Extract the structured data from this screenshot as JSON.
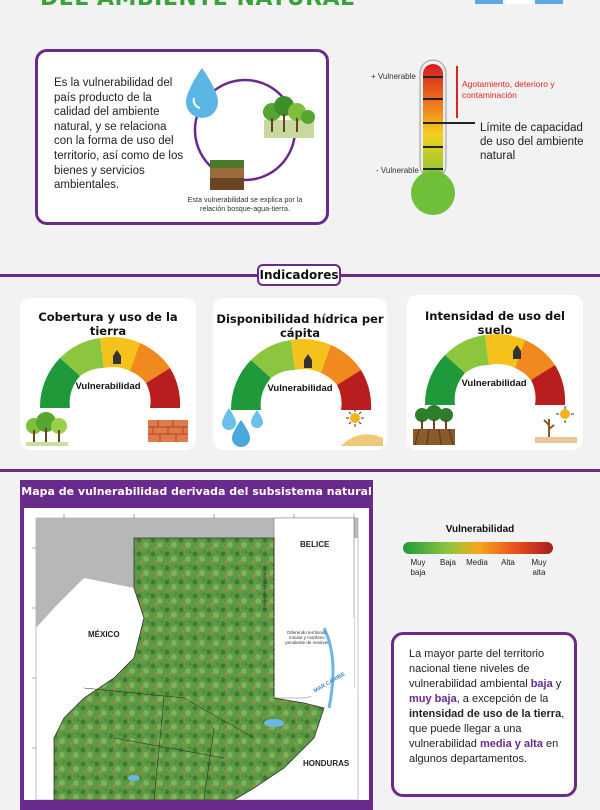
{
  "header": {
    "title": "DEL AMBIENTE NATURAL"
  },
  "intro": {
    "text": "Es la vulnerabilidad del país producto de la calidad del ambiente natural, y se relaciona con la forma de uso del territorio, así como de los bienes y servicios ambientales.",
    "caption": "Esta vulnerabilidad se explica por la relación bosque-agua-tierra."
  },
  "thermometer": {
    "plus_label": "+ Vulnerable",
    "minus_label": "- Vulnerable",
    "top_note": "Agotamiento, deterioro y contaminación",
    "limit_note": "Límite de capacidad de uso del ambiente natural"
  },
  "indicators": {
    "heading": "Indicadores",
    "cards": [
      {
        "title": "Cobertura y uso de la tierra",
        "gauge_label": "Vulnerabilidad"
      },
      {
        "title": "Disponibilidad hídrica per cápita",
        "gauge_label": "Vulnerabilidad"
      },
      {
        "title": "Intensidad de uso del suelo",
        "gauge_label": "Vulnerabilidad"
      }
    ]
  },
  "map": {
    "title": "Mapa de vulnerabilidad derivada del subsistema natural",
    "labels": {
      "belice": "BELICE",
      "mexico": "MÉXICO",
      "honduras": "HONDURAS",
      "mar_caribe": "MAR CARIBE",
      "diferendo": "Diferendo territorial, insular y marítimo pendiente de resolver",
      "franja": "Franja de adyacencia"
    }
  },
  "legend": {
    "title": "Vulnerabilidad",
    "levels": [
      {
        "label": "Muy baja",
        "color": "#1e9a3a"
      },
      {
        "label": "Baja",
        "color": "#8cc63f"
      },
      {
        "label": "Media",
        "color": "#f7a81b"
      },
      {
        "label": "Alta",
        "color": "#e8501e"
      },
      {
        "label": "Muy alta",
        "color": "#a81e1e"
      }
    ]
  },
  "conclusion": {
    "p1": "La mayor parte del territorio nacional tiene niveles de vulnerabilidad ambiental ",
    "h1": "baja",
    "p2": " y ",
    "h2": "muy baja",
    "p3": ", a excepción de la ",
    "b1": "intensidad de uso de la tierra",
    "p4": ", que puede llegar a una vulnerabilidad ",
    "h3": "media y alta",
    "p5": " en algunos departamentos."
  },
  "colors": {
    "accent": "#6a2a8c",
    "title_green": "#3aa23a"
  }
}
